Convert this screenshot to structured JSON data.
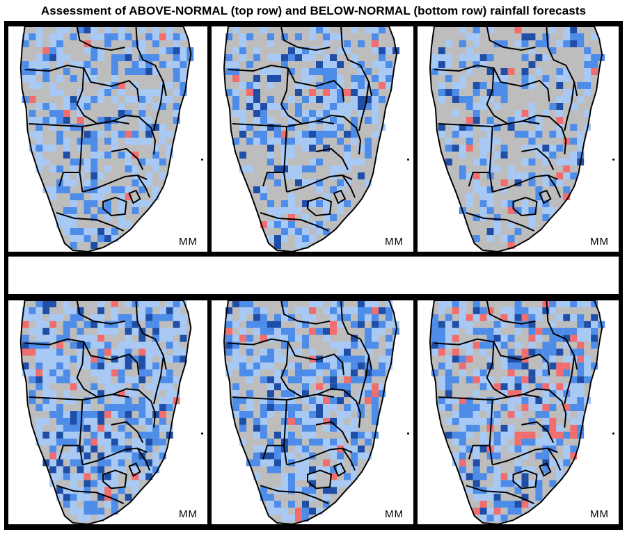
{
  "title": "Assessment of ABOVE-NORMAL (top row) and  BELOW-NORMAL (bottom row) rainfall forecasts",
  "colors": {
    "land": "#bdbdbd",
    "light_blue": "#a9c9f5",
    "mid_blue": "#4d8ce8",
    "dark_blue": "#1f4ea6",
    "red": "#f26e6e",
    "border": "#000000",
    "background": "#ffffff"
  },
  "panels": [
    {
      "row": "top",
      "label": "MM"
    },
    {
      "row": "top",
      "label": "MM"
    },
    {
      "row": "top",
      "label": "MM"
    },
    {
      "row": "bottom",
      "label": "MM"
    },
    {
      "row": "bottom",
      "label": "MM"
    },
    {
      "row": "bottom",
      "label": "MM"
    }
  ]
}
